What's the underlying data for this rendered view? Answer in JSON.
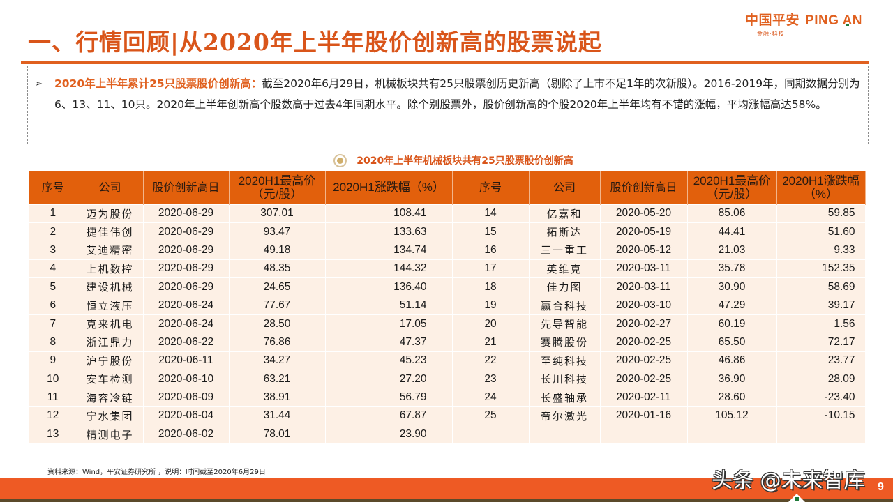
{
  "title": "一、行情回顾|从2020年上半年股价创新高的股票说起",
  "logo": {
    "cn": "中国平安",
    "en_prefix": "PING ",
    "en_A": "A",
    "en_suffix": "N",
    "tagline": "金融·科技"
  },
  "summary": {
    "bullet": "➢",
    "lead": "2020年上半年累计25只股票股价创新高：",
    "body": "截至2020年6月29日，机械板块共有25只股票创历史新高（剔除了上市不足1年的次新股）。2016-2019年，同期数据分别为6、13、11、10只。2020年上半年创新高个股数高于过去4年同期水平。除个别股票外，股价创新高的个股2020年上半年均有不错的涨幅，平均涨幅高达58%。"
  },
  "table": {
    "caption": "2020年上半年机械板块共有25只股票股价创新高",
    "headers_left": [
      "序号",
      "公司",
      "股价创新高日",
      "2020H1最高价（元/股）",
      "2020H1涨跌幅（%）"
    ],
    "headers_right": [
      "序号",
      "公司",
      "股价创新高日",
      "2020H1最高价（元/股）",
      "2020H1涨跌幅（%）"
    ],
    "rows": [
      {
        "left": [
          "1",
          "迈为股份",
          "2020-06-29",
          "307.01",
          "108.41"
        ],
        "right": [
          "14",
          "亿嘉和",
          "2020-05-20",
          "85.06",
          "59.85"
        ]
      },
      {
        "left": [
          "2",
          "捷佳伟创",
          "2020-06-29",
          "93.47",
          "133.63"
        ],
        "right": [
          "15",
          "拓斯达",
          "2020-05-19",
          "44.41",
          "51.60"
        ]
      },
      {
        "left": [
          "3",
          "艾迪精密",
          "2020-06-29",
          "49.18",
          "134.74"
        ],
        "right": [
          "16",
          "三一重工",
          "2020-05-12",
          "21.03",
          "9.33"
        ]
      },
      {
        "left": [
          "4",
          "上机数控",
          "2020-06-29",
          "48.35",
          "144.32"
        ],
        "right": [
          "17",
          "英维克",
          "2020-03-11",
          "35.78",
          "152.35"
        ]
      },
      {
        "left": [
          "5",
          "建设机械",
          "2020-06-29",
          "24.65",
          "136.40"
        ],
        "right": [
          "18",
          "佳力图",
          "2020-03-11",
          "30.90",
          "58.69"
        ]
      },
      {
        "left": [
          "6",
          "恒立液压",
          "2020-06-24",
          "77.67",
          "51.14"
        ],
        "right": [
          "19",
          "赢合科技",
          "2020-03-10",
          "47.29",
          "39.17"
        ]
      },
      {
        "left": [
          "7",
          "克来机电",
          "2020-06-24",
          "28.50",
          "17.05"
        ],
        "right": [
          "20",
          "先导智能",
          "2020-02-27",
          "60.19",
          "1.56"
        ]
      },
      {
        "left": [
          "8",
          "浙江鼎力",
          "2020-06-22",
          "76.86",
          "47.37"
        ],
        "right": [
          "21",
          "赛腾股份",
          "2020-02-25",
          "65.50",
          "72.17"
        ]
      },
      {
        "left": [
          "9",
          "沪宁股份",
          "2020-06-11",
          "34.27",
          "45.23"
        ],
        "right": [
          "22",
          "至纯科技",
          "2020-02-25",
          "46.86",
          "23.77"
        ]
      },
      {
        "left": [
          "10",
          "安车检测",
          "2020-06-10",
          "63.21",
          "27.20"
        ],
        "right": [
          "23",
          "长川科技",
          "2020-02-25",
          "36.90",
          "28.09"
        ]
      },
      {
        "left": [
          "11",
          "海容冷链",
          "2020-06-09",
          "38.91",
          "56.79"
        ],
        "right": [
          "24",
          "长盛轴承",
          "2020-02-11",
          "28.60",
          "-23.40"
        ]
      },
      {
        "left": [
          "12",
          "宁水集团",
          "2020-06-04",
          "31.44",
          "67.87"
        ],
        "right": [
          "25",
          "帝尔激光",
          "2020-01-16",
          "105.12",
          "-10.15"
        ]
      },
      {
        "left": [
          "13",
          "精测电子",
          "2020-06-02",
          "78.01",
          "23.90"
        ],
        "right": [
          "",
          "",
          "",
          "",
          ""
        ]
      }
    ]
  },
  "footnote": "资料来源：Wind，平安证券研究所 ，说明：时间截至2020年6月29日",
  "watermark": "头条 @未来智库",
  "page_number": "9",
  "colors": {
    "accent": "#e0601f",
    "header_bg": "#e2600c",
    "row_bg": "#fdf0e5",
    "footer_bar": "#ee5a24"
  }
}
